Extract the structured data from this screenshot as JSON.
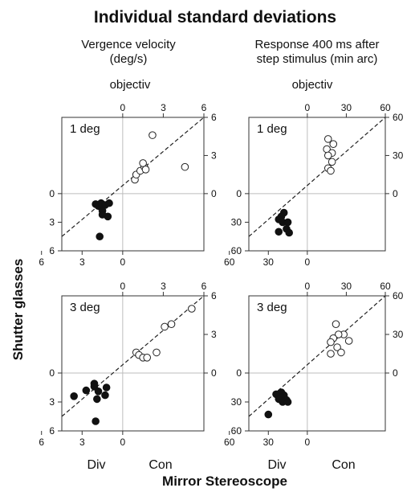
{
  "title": "Individual standard deviations",
  "column_titles": [
    [
      "Vergence velocity",
      "(deg/s)"
    ],
    [
      "Response 400 ms after",
      "step stimulus (min arc)"
    ]
  ],
  "objectiv_label": "objectiv",
  "x_axis_title": "Mirror Stereoscope",
  "y_axis_title": "Shutter glasses",
  "div_label": "Div",
  "con_label": "Con",
  "colors": {
    "frame": "#333333",
    "crosshair": "#bdbdbd",
    "diagonal": "#222222",
    "filled": "#111111",
    "open_stroke": "#222222"
  },
  "chart_data": [
    {
      "type": "scatter",
      "title": "1 deg",
      "column": "Vergence velocity (deg/s)",
      "axis_max": 6,
      "top_ticks": [
        "0",
        "3",
        "6"
      ],
      "bottom_ticks": [
        "6",
        "3",
        "0"
      ],
      "left_ticks": [
        "0",
        "3",
        "6"
      ],
      "right_ticks": [
        "6",
        "3",
        "0"
      ],
      "diagonal": true,
      "crosshair": true,
      "series": [
        {
          "marker": "open",
          "points": [
            [
              0.9,
              1.1
            ],
            [
              1.0,
              1.5
            ],
            [
              1.3,
              1.8
            ],
            [
              1.6,
              2.1
            ],
            [
              1.5,
              2.4
            ],
            [
              1.7,
              1.9
            ],
            [
              2.2,
              4.6
            ],
            [
              4.6,
              2.1
            ]
          ]
        },
        {
          "marker": "filled",
          "points": [
            [
              -2.0,
              -1.1
            ],
            [
              -1.8,
              -1.3
            ],
            [
              -1.6,
              -1.0
            ],
            [
              -1.3,
              -1.2
            ],
            [
              -1.0,
              -1.0
            ],
            [
              -1.5,
              -1.8
            ],
            [
              -1.1,
              -2.4
            ],
            [
              -1.7,
              -4.5
            ],
            [
              -1.5,
              -2.2
            ]
          ]
        }
      ]
    },
    {
      "type": "scatter",
      "title": "1 deg",
      "column": "Response 400 ms after step stimulus (min arc)",
      "axis_max": 60,
      "top_ticks": [
        "0",
        "30",
        "60"
      ],
      "bottom_ticks": [
        "60",
        "30",
        "0"
      ],
      "left_ticks": [
        "0",
        "30",
        "60"
      ],
      "right_ticks": [
        "60",
        "30",
        "0"
      ],
      "diagonal": true,
      "crosshair": true,
      "series": [
        {
          "marker": "open",
          "points": [
            [
              16,
              43
            ],
            [
              20,
              39
            ],
            [
              15,
              35
            ],
            [
              19,
              32
            ],
            [
              16,
              30
            ],
            [
              19,
              25
            ],
            [
              16,
              20
            ],
            [
              18,
              18
            ]
          ]
        },
        {
          "marker": "filled",
          "points": [
            [
              -18,
              -20
            ],
            [
              -20,
              -24
            ],
            [
              -22,
              -27
            ],
            [
              -19,
              -30
            ],
            [
              -15,
              -30
            ],
            [
              -16,
              -37
            ],
            [
              -22,
              -40
            ],
            [
              -14,
              -41
            ]
          ]
        }
      ]
    },
    {
      "type": "scatter",
      "title": "3 deg",
      "column": "Vergence velocity (deg/s)",
      "axis_max": 6,
      "top_ticks": [
        "0",
        "3",
        "6"
      ],
      "bottom_ticks": [
        "6",
        "3",
        "0"
      ],
      "left_ticks": [
        "0",
        "3",
        "6"
      ],
      "right_ticks": [
        "6",
        "3",
        "0"
      ],
      "diagonal": true,
      "crosshair": true,
      "series": [
        {
          "marker": "open",
          "points": [
            [
              1.0,
              1.6
            ],
            [
              1.2,
              1.4
            ],
            [
              1.5,
              1.2
            ],
            [
              1.8,
              1.2
            ],
            [
              2.5,
              1.6
            ],
            [
              3.1,
              3.6
            ],
            [
              3.6,
              3.8
            ],
            [
              5.1,
              5.0
            ]
          ]
        },
        {
          "marker": "filled",
          "points": [
            [
              -2.1,
              -1.1
            ],
            [
              -2.1,
              -1.4
            ],
            [
              -2.7,
              -1.8
            ],
            [
              -1.8,
              -1.9
            ],
            [
              -1.2,
              -1.5
            ],
            [
              -1.3,
              -2.3
            ],
            [
              -3.6,
              -2.4
            ],
            [
              -1.9,
              -2.7
            ],
            [
              -2.0,
              -5.0
            ]
          ]
        }
      ]
    },
    {
      "type": "scatter",
      "title": "3 deg",
      "column": "Response 400 ms after step stimulus (min arc)",
      "axis_max": 60,
      "top_ticks": [
        "0",
        "30",
        "60"
      ],
      "bottom_ticks": [
        "60",
        "30",
        "0"
      ],
      "left_ticks": [
        "0",
        "30",
        "60"
      ],
      "right_ticks": [
        "60",
        "30",
        "0"
      ],
      "diagonal": true,
      "crosshair": true,
      "series": [
        {
          "marker": "open",
          "points": [
            [
              22,
              38
            ],
            [
              28,
              30
            ],
            [
              24,
              30
            ],
            [
              20,
              27
            ],
            [
              32,
              25
            ],
            [
              18,
              24
            ],
            [
              23,
              20
            ],
            [
              18,
              15
            ],
            [
              26,
              16
            ]
          ]
        },
        {
          "marker": "filled",
          "points": [
            [
              -20,
              -20
            ],
            [
              -24,
              -22
            ],
            [
              -18,
              -23
            ],
            [
              -20,
              -25
            ],
            [
              -22,
              -27
            ],
            [
              -16,
              -28
            ],
            [
              -19,
              -30
            ],
            [
              -15,
              -30
            ],
            [
              -30,
              -43
            ]
          ]
        }
      ]
    }
  ]
}
